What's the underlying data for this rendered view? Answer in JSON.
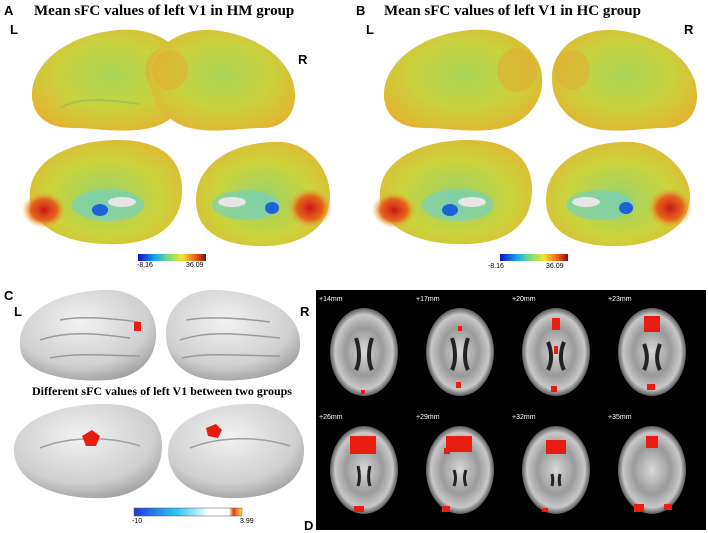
{
  "panels": {
    "A": {
      "letter": "A",
      "title": "Mean sFC values of left V1 in HM group",
      "left": "L",
      "right": "R",
      "colorbar_min": "-8.16",
      "colorbar_max": "36.09"
    },
    "B": {
      "letter": "B",
      "title": "Mean sFC values of left V1 in HC group",
      "left": "L",
      "right": "R",
      "colorbar_min": "-8.16",
      "colorbar_max": "36.09"
    },
    "C": {
      "letter": "C",
      "title": "Different sFC values of left V1 between two groups",
      "left": "L",
      "right": "R",
      "colorbar_min": "-10",
      "colorbar_max": "3.99"
    },
    "D": {
      "letter": "D",
      "slices": [
        "+14mm",
        "+17mm",
        "+20mm",
        "+23mm",
        "+26mm",
        "+29mm",
        "+32mm",
        "+35mm"
      ]
    }
  },
  "colors": {
    "cortex_base": "#b8d24a",
    "cortex_warm": "#e8c23a",
    "cortex_hot": "#d2321c",
    "cortex_cool": "#2a6ee0",
    "brain_gray": "#c8c8c8",
    "activation": "#e81c10",
    "background_dark": "#000000"
  }
}
